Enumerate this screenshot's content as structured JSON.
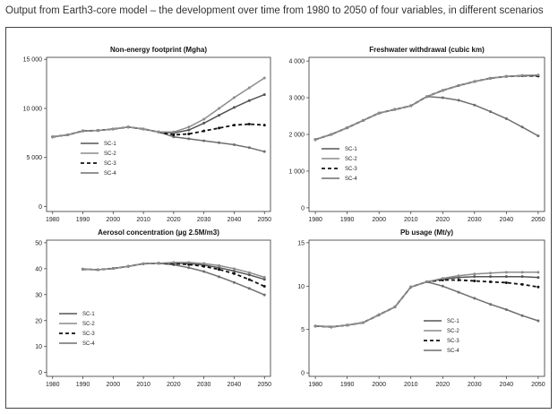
{
  "caption": "Output from Earth3-core model – the development over time from 1980 to 2050 of four variables, in different scenarios",
  "colors": {
    "SC-1": "#555555",
    "SC-2": "#8c8c8c",
    "SC-3": "#111111",
    "SC-4": "#6e6e6e"
  },
  "chart_data": [
    {
      "type": "line",
      "title": "Non-energy footprint (Mgha)",
      "xlabel": "",
      "ylabel": "",
      "xlim": [
        1978,
        2052
      ],
      "ylim": [
        -500,
        15200
      ],
      "xticks": [
        1980,
        1990,
        2000,
        2010,
        2020,
        2030,
        2040,
        2050
      ],
      "yticks": [
        0,
        5000,
        10000,
        15000
      ],
      "ytick_labels": [
        "0",
        "5 000",
        "10 000",
        "15 000"
      ],
      "legend_position": "center-left",
      "grid": false,
      "series": [
        {
          "name": "SC-1",
          "x": [
            1980,
            1985,
            1990,
            1995,
            2000,
            2005,
            2010,
            2015,
            2020,
            2025,
            2030,
            2035,
            2040,
            2045,
            2050
          ],
          "y": [
            7100,
            7300,
            7700,
            7750,
            7900,
            8100,
            7900,
            7600,
            7500,
            7800,
            8500,
            9300,
            10100,
            10800,
            11400
          ]
        },
        {
          "name": "SC-2",
          "x": [
            1980,
            1985,
            1990,
            1995,
            2000,
            2005,
            2010,
            2015,
            2020,
            2025,
            2030,
            2035,
            2040,
            2045,
            2050
          ],
          "y": [
            7100,
            7300,
            7700,
            7750,
            7900,
            8100,
            7900,
            7600,
            7600,
            8100,
            8900,
            10000,
            11100,
            12100,
            13100
          ]
        },
        {
          "name": "SC-3",
          "x": [
            1980,
            1985,
            1990,
            1995,
            2000,
            2005,
            2010,
            2015,
            2020,
            2025,
            2030,
            2035,
            2040,
            2045,
            2050
          ],
          "y": [
            7100,
            7300,
            7700,
            7750,
            7900,
            8100,
            7900,
            7600,
            7300,
            7400,
            7700,
            8000,
            8300,
            8400,
            8300
          ]
        },
        {
          "name": "SC-4",
          "x": [
            1980,
            1985,
            1990,
            1995,
            2000,
            2005,
            2010,
            2015,
            2020,
            2025,
            2030,
            2035,
            2040,
            2045,
            2050
          ],
          "y": [
            7100,
            7300,
            7700,
            7750,
            7900,
            8100,
            7900,
            7600,
            7100,
            6900,
            6700,
            6500,
            6300,
            6000,
            5600
          ]
        }
      ]
    },
    {
      "type": "line",
      "title": "Freshwater withdrawal (cubic km)",
      "xlabel": "",
      "ylabel": "",
      "xlim": [
        1978,
        2052
      ],
      "ylim": [
        -100,
        4100
      ],
      "xticks": [
        1980,
        1990,
        2000,
        2010,
        2020,
        2030,
        2040,
        2050
      ],
      "yticks": [
        0,
        1000,
        2000,
        3000,
        4000
      ],
      "ytick_labels": [
        "0",
        "1 000",
        "2 000",
        "3 000",
        "4 000"
      ],
      "legend_position": "bottom-left",
      "grid": false,
      "series": [
        {
          "name": "SC-1",
          "x": [
            1980,
            1985,
            1990,
            1995,
            2000,
            2005,
            2010,
            2015,
            2020,
            2025,
            2030,
            2035,
            2040,
            2045,
            2050
          ],
          "y": [
            1860,
            2000,
            2180,
            2380,
            2580,
            2680,
            2780,
            3030,
            3200,
            3330,
            3440,
            3530,
            3580,
            3600,
            3600
          ]
        },
        {
          "name": "SC-2",
          "x": [
            1980,
            1985,
            1990,
            1995,
            2000,
            2005,
            2010,
            2015,
            2020,
            2025,
            2030,
            2035,
            2040,
            2045,
            2050
          ],
          "y": [
            1860,
            2000,
            2180,
            2380,
            2580,
            2680,
            2780,
            3030,
            3200,
            3330,
            3440,
            3530,
            3580,
            3610,
            3620
          ]
        },
        {
          "name": "SC-3",
          "x": [
            1980,
            1985,
            1990,
            1995,
            2000,
            2005,
            2010,
            2015,
            2020,
            2025,
            2030,
            2035,
            2040,
            2045,
            2050
          ],
          "y": [
            1860,
            2000,
            2180,
            2380,
            2580,
            2680,
            2780,
            3030,
            3200,
            3330,
            3440,
            3530,
            3580,
            3600,
            3590
          ]
        },
        {
          "name": "SC-4",
          "x": [
            1980,
            1985,
            1990,
            1995,
            2000,
            2005,
            2010,
            2015,
            2020,
            2025,
            2030,
            2035,
            2040,
            2045,
            2050
          ],
          "y": [
            1860,
            2000,
            2180,
            2380,
            2580,
            2680,
            2780,
            3030,
            3000,
            2930,
            2800,
            2620,
            2430,
            2200,
            1960
          ]
        }
      ]
    },
    {
      "type": "line",
      "title": "Aerosol concentration (µg 2.5M/m3)",
      "xlabel": "",
      "ylabel": "",
      "xlim": [
        1978,
        2052
      ],
      "ylim": [
        -1.5,
        51
      ],
      "xticks": [
        1980,
        1990,
        2000,
        2010,
        2020,
        2030,
        2040,
        2050
      ],
      "yticks": [
        0,
        10,
        20,
        30,
        40,
        50
      ],
      "ytick_labels": [
        "0",
        "10",
        "20",
        "30",
        "40",
        "50"
      ],
      "legend_position": "bottom-left",
      "grid": false,
      "series": [
        {
          "name": "SC-1",
          "x": [
            1990,
            1995,
            2000,
            2005,
            2010,
            2015,
            2020,
            2025,
            2030,
            2035,
            2040,
            2045,
            2050
          ],
          "y": [
            39.8,
            39.6,
            40.1,
            40.9,
            41.9,
            42.1,
            42.1,
            42.0,
            41.4,
            40.4,
            39.1,
            37.6,
            35.9
          ]
        },
        {
          "name": "SC-2",
          "x": [
            1990,
            1995,
            2000,
            2005,
            2010,
            2015,
            2020,
            2025,
            2030,
            2035,
            2040,
            2045,
            2050
          ],
          "y": [
            39.8,
            39.6,
            40.1,
            40.9,
            41.9,
            42.1,
            42.4,
            42.4,
            42.0,
            41.2,
            40.0,
            38.5,
            36.7
          ]
        },
        {
          "name": "SC-3",
          "x": [
            1990,
            1995,
            2000,
            2005,
            2010,
            2015,
            2020,
            2025,
            2030,
            2035,
            2040,
            2045,
            2050
          ],
          "y": [
            39.8,
            39.6,
            40.1,
            40.9,
            41.9,
            42.1,
            42.0,
            41.6,
            40.9,
            39.7,
            38.1,
            35.8,
            33.2
          ]
        },
        {
          "name": "SC-4",
          "x": [
            1990,
            1995,
            2000,
            2005,
            2010,
            2015,
            2020,
            2025,
            2030,
            2035,
            2040,
            2045,
            2050
          ],
          "y": [
            39.8,
            39.6,
            40.1,
            40.9,
            41.9,
            42.1,
            41.5,
            40.4,
            38.9,
            36.9,
            34.7,
            32.4,
            29.9
          ]
        }
      ]
    },
    {
      "type": "line",
      "title": "Pb usage (Mt/y)",
      "xlabel": "",
      "ylabel": "",
      "xlim": [
        1978,
        2052
      ],
      "ylim": [
        -0.4,
        15.3
      ],
      "xticks": [
        1980,
        1990,
        2000,
        2010,
        2020,
        2030,
        2040,
        2050
      ],
      "yticks": [
        0,
        5,
        10,
        15
      ],
      "ytick_labels": [
        "0",
        "5",
        "10",
        "15"
      ],
      "legend_position": "bottom-right",
      "grid": false,
      "series": [
        {
          "name": "SC-1",
          "x": [
            1980,
            1985,
            1990,
            1995,
            2000,
            2005,
            2010,
            2015,
            2020,
            2025,
            2030,
            2035,
            2040,
            2045,
            2050
          ],
          "y": [
            5.4,
            5.3,
            5.5,
            5.8,
            6.7,
            7.6,
            9.9,
            10.5,
            10.8,
            11.0,
            11.1,
            11.1,
            11.1,
            11.1,
            11.0
          ]
        },
        {
          "name": "SC-2",
          "x": [
            1980,
            1985,
            1990,
            1995,
            2000,
            2005,
            2010,
            2015,
            2020,
            2025,
            2030,
            2035,
            2040,
            2045,
            2050
          ],
          "y": [
            5.4,
            5.3,
            5.5,
            5.8,
            6.7,
            7.6,
            9.9,
            10.5,
            10.9,
            11.2,
            11.4,
            11.5,
            11.6,
            11.6,
            11.6
          ]
        },
        {
          "name": "SC-3",
          "x": [
            1980,
            1985,
            1990,
            1995,
            2000,
            2005,
            2010,
            2015,
            2020,
            2025,
            2030,
            2035,
            2040,
            2045,
            2050
          ],
          "y": [
            5.4,
            5.3,
            5.5,
            5.8,
            6.7,
            7.6,
            9.9,
            10.5,
            10.7,
            10.7,
            10.6,
            10.5,
            10.4,
            10.2,
            9.9
          ]
        },
        {
          "name": "SC-4",
          "x": [
            1980,
            1985,
            1990,
            1995,
            2000,
            2005,
            2010,
            2015,
            2020,
            2025,
            2030,
            2035,
            2040,
            2045,
            2050
          ],
          "y": [
            5.4,
            5.3,
            5.5,
            5.8,
            6.7,
            7.6,
            9.9,
            10.5,
            10.0,
            9.3,
            8.6,
            7.9,
            7.3,
            6.6,
            6.0
          ]
        }
      ]
    }
  ]
}
